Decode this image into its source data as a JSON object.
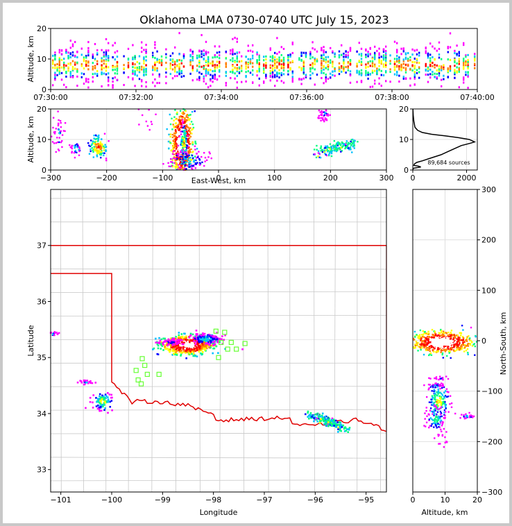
{
  "title": "Oklahoma LMA 0730-0740 UTC July 15, 2023",
  "chart_data": [
    {
      "panel": "altitude-time",
      "type": "heatmap",
      "ylabel": "Altitude, km",
      "ylim": [
        0,
        20
      ],
      "yticks": [
        "0",
        "10",
        "20"
      ],
      "xticks": [
        "07:30:00",
        "07:32:00",
        "07:34:00",
        "07:36:00",
        "07:38:00",
        "07:40:00"
      ],
      "xlim": [
        "07:30:00",
        "07:40:00"
      ],
      "grid": false
    },
    {
      "panel": "east-west-altitude",
      "type": "heatmap",
      "xlabel": "East-West, km",
      "ylabel": "Altitude, km",
      "xlim": [
        -300,
        300
      ],
      "ylim": [
        0,
        20
      ],
      "xticks": [
        "−300",
        "−200",
        "−100",
        "0",
        "100",
        "200",
        "300"
      ],
      "yticks": [
        "0",
        "10",
        "20"
      ],
      "clusters": [
        {
          "x": -65,
          "z_range": [
            0,
            20
          ],
          "peak_z": 10
        },
        {
          "x": -215,
          "z_range": [
            5,
            12
          ]
        },
        {
          "x": -255,
          "z_range": [
            6,
            9
          ]
        },
        {
          "x": -285,
          "z_range": [
            9,
            17
          ]
        },
        {
          "x": 205,
          "z_range": [
            5,
            9
          ]
        },
        {
          "x": 190,
          "z_range": [
            17,
            20
          ]
        }
      ],
      "grid": true
    },
    {
      "panel": "altitude-histogram",
      "type": "line",
      "xlim": [
        0,
        2400
      ],
      "ylim": [
        0,
        20
      ],
      "xticks": [
        "0",
        "2000"
      ],
      "yticks": [
        "0",
        "10",
        "20"
      ],
      "annotation": "89,684 sources",
      "profile": [
        [
          0,
          0.2
        ],
        [
          30,
          0.6
        ],
        [
          300,
          1
        ],
        [
          200,
          1.3
        ],
        [
          40,
          1.5
        ],
        [
          60,
          2
        ],
        [
          150,
          2.5
        ],
        [
          350,
          3
        ],
        [
          700,
          4
        ],
        [
          1050,
          5
        ],
        [
          1300,
          6
        ],
        [
          1550,
          7
        ],
        [
          1800,
          8
        ],
        [
          2150,
          8.8
        ],
        [
          2300,
          9.2
        ],
        [
          2100,
          10
        ],
        [
          1700,
          10.6
        ],
        [
          1200,
          11.2
        ],
        [
          700,
          11.7
        ],
        [
          350,
          12.3
        ],
        [
          180,
          13
        ],
        [
          80,
          14
        ],
        [
          40,
          16
        ],
        [
          15,
          18
        ],
        [
          5,
          20
        ]
      ]
    },
    {
      "panel": "plan-view-map",
      "type": "heatmap",
      "xlabel": "Longitude",
      "ylabel": "Latitude",
      "xlim": [
        -101.2,
        -94.6
      ],
      "ylim": [
        32.6,
        38.0
      ],
      "xticks": [
        "−101",
        "−100",
        "−99",
        "−98",
        "−97",
        "−96",
        "−95"
      ],
      "yticks": [
        "33",
        "34",
        "35",
        "36",
        "37"
      ],
      "stations": [
        [
          -97.95,
          35.47
        ],
        [
          -97.78,
          35.45
        ],
        [
          -97.65,
          35.27
        ],
        [
          -97.85,
          35.27
        ],
        [
          -97.72,
          35.15
        ],
        [
          -97.55,
          35.15
        ],
        [
          -97.38,
          35.25
        ],
        [
          -97.9,
          35.0
        ],
        [
          -99.4,
          34.98
        ],
        [
          -99.35,
          34.86
        ],
        [
          -99.52,
          34.77
        ],
        [
          -99.3,
          34.7
        ],
        [
          -99.48,
          34.6
        ],
        [
          -99.42,
          34.53
        ],
        [
          -99.07,
          34.7
        ]
      ],
      "clusters": [
        {
          "lon": -98.55,
          "lat": 35.25
        },
        {
          "lon": -101.15,
          "lat": 35.42
        },
        {
          "lon": -100.5,
          "lat": 34.55
        },
        {
          "lon": -100.15,
          "lat": 34.2
        },
        {
          "lon": -95.85,
          "lat": 33.85
        }
      ]
    },
    {
      "panel": "altitude-north-south",
      "type": "heatmap",
      "xlabel": "Altitude, km",
      "ylabel": "North-South, km",
      "xlim": [
        0,
        20
      ],
      "ylim": [
        -300,
        300
      ],
      "xticks": [
        "0",
        "10",
        "20"
      ],
      "yticks": [
        "−300",
        "−200",
        "−100",
        "0",
        "100",
        "200",
        "300"
      ],
      "grid": true
    }
  ]
}
